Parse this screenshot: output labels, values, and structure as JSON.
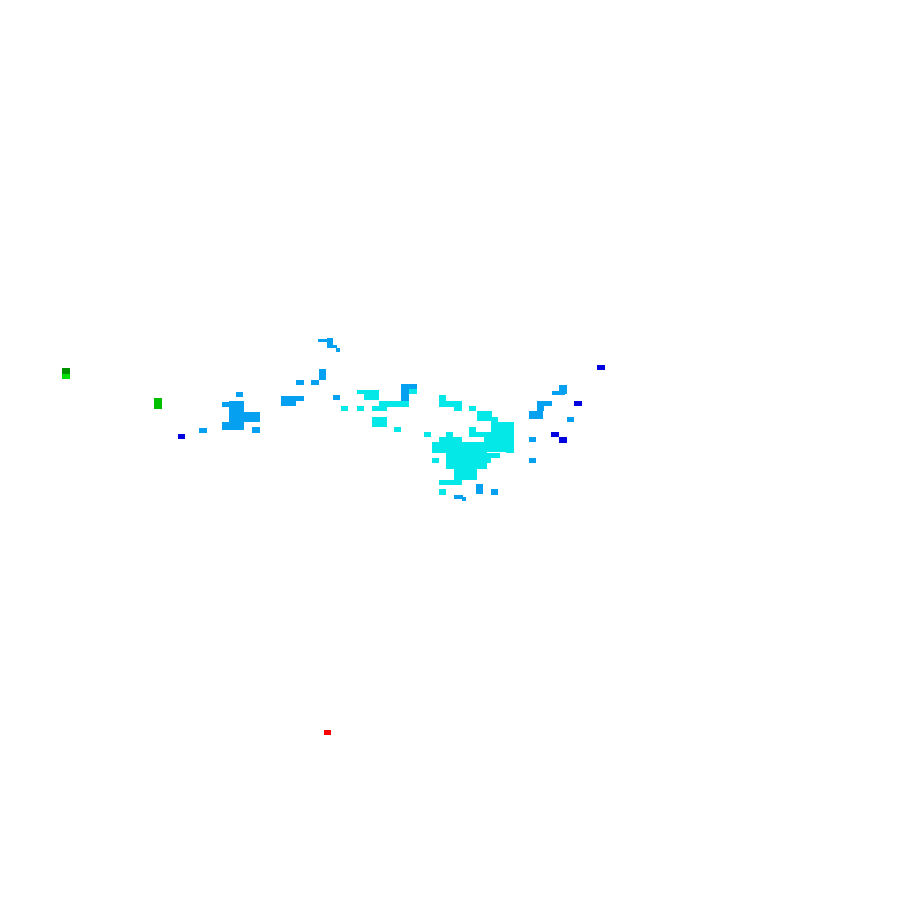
{
  "background": "#ffffff",
  "palette": {
    "blue": "#05a0f0",
    "cyan": "#05e8e8",
    "dark_blue": "#0000e0",
    "dark_green": "#009000",
    "green": "#00c000",
    "light_green": "#00e000",
    "red": "#ff0000"
  }
}
